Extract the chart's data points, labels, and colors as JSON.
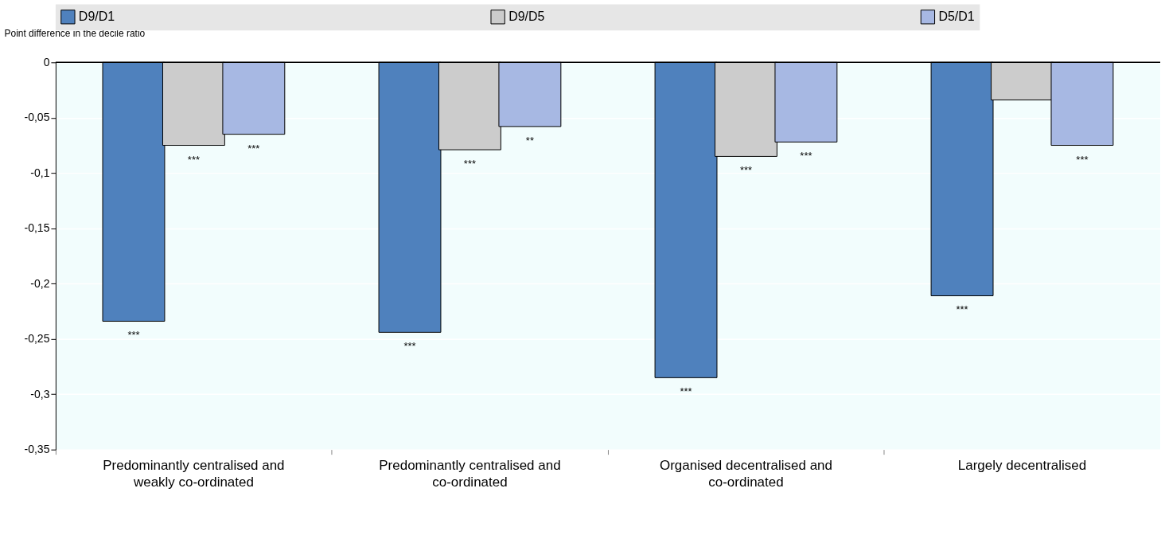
{
  "chart_data": {
    "type": "bar",
    "ylabel": "Point difference in the decile ratio",
    "categories": [
      "Predominantly centralised and weakly co-ordinated",
      "Predominantly centralised and co-ordinated",
      "Organised decentralised and co-ordinated",
      "Largely decentralised"
    ],
    "series": [
      {
        "name": "D9/D1",
        "color": "#4f81bd",
        "values": [
          -0.234,
          -0.244,
          -0.285,
          -0.211
        ],
        "value_labels": [
          "***",
          "***",
          "***",
          "***"
        ]
      },
      {
        "name": "D9/D5",
        "color": "#cccccc",
        "values": [
          -0.075,
          -0.079,
          -0.085,
          -0.034
        ],
        "value_labels": [
          "***",
          "***",
          "***",
          null
        ]
      },
      {
        "name": "D5/D1",
        "color": "#a7b8e3",
        "values": [
          -0.065,
          -0.058,
          -0.072,
          -0.075
        ],
        "value_labels": [
          "***",
          "**",
          "***",
          "***"
        ]
      }
    ],
    "ylim": [
      -0.35,
      0
    ],
    "yticks": [
      {
        "value": 0,
        "label": "0"
      },
      {
        "value": -0.05,
        "label": "-0,05"
      },
      {
        "value": -0.1,
        "label": "-0,1"
      },
      {
        "value": -0.15,
        "label": "-0,15"
      },
      {
        "value": -0.2,
        "label": "-0,2"
      },
      {
        "value": -0.25,
        "label": "-0,25"
      },
      {
        "value": -0.3,
        "label": "-0,3"
      },
      {
        "value": -0.35,
        "label": "-0,35"
      }
    ],
    "grid": "y",
    "legend": "top"
  }
}
